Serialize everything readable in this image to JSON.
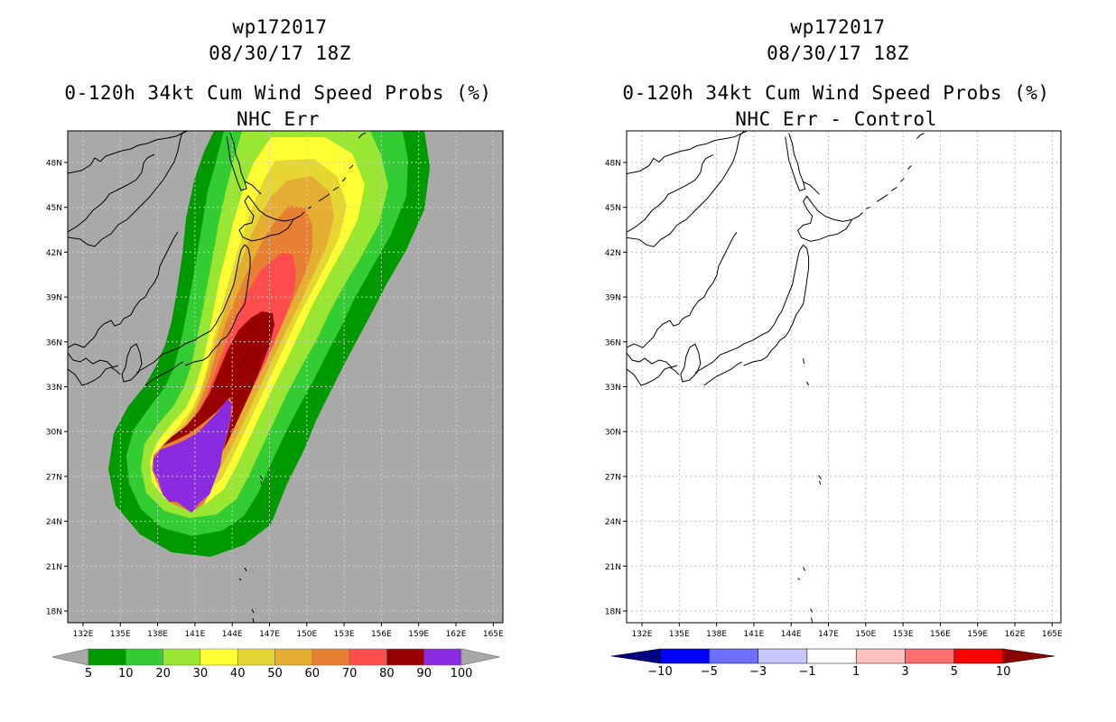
{
  "left_panel": {
    "storm_id": "wp172017",
    "datetime": "08/30/17 18Z",
    "product": "0-120h 34kt Cum Wind Speed Probs (%)",
    "subtitle": "NHC Err",
    "background_color": "#a9a9a9",
    "legend": {
      "labels": [
        "5",
        "10",
        "20",
        "30",
        "40",
        "50",
        "60",
        "70",
        "80",
        "90",
        "100"
      ],
      "colors": [
        "#009900",
        "#33cc33",
        "#99e633",
        "#ffff33",
        "#e6d633",
        "#e6ad33",
        "#e68033",
        "#ff4d4d",
        "#990000",
        "#8a2be2"
      ]
    },
    "chart_data": {
      "type": "filled-contour-map",
      "variable": "0-120h 34kt cumulative wind speed probability (%)",
      "contour_levels": [
        5,
        10,
        20,
        30,
        40,
        50,
        60,
        70,
        80,
        90,
        100
      ],
      "max_probability_region": "around 25N-29N, 138E-144E",
      "swath_direction": "north-northeast toward 48N, 154E"
    }
  },
  "right_panel": {
    "storm_id": "wp172017",
    "datetime": "08/30/17 18Z",
    "product": "0-120h 34kt Cum Wind Speed Probs (%)",
    "subtitle": "NHC Err - Control",
    "background_color": "#ffffff",
    "legend": {
      "labels": [
        "-10",
        "-5",
        "-3",
        "-1",
        "1",
        "3",
        "5",
        "10"
      ],
      "colors": [
        "#000080",
        "#0000ff",
        "#6f6fff",
        "#c8c8ff",
        "#ffffff",
        "#ffc0c0",
        "#ff6f6f",
        "#ff0000",
        "#8b0000"
      ]
    },
    "chart_data": {
      "type": "difference-map",
      "variable": "probability difference (NHC Err - Control)",
      "contour_levels": [
        -10,
        -5,
        -3,
        -1,
        1,
        3,
        5,
        10
      ],
      "field": "all differences between -1 and 1"
    }
  },
  "axes": {
    "lat_labels": [
      "48N",
      "45N",
      "42N",
      "39N",
      "36N",
      "33N",
      "30N",
      "27N",
      "24N",
      "21N",
      "18N"
    ],
    "lon_labels": [
      "132E",
      "135E",
      "138E",
      "141E",
      "144E",
      "147E",
      "150E",
      "153E",
      "156E",
      "159E",
      "162E",
      "165E"
    ]
  }
}
